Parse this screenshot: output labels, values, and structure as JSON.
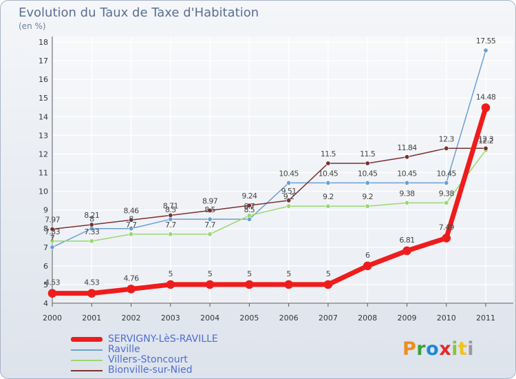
{
  "header": {
    "title": "Evolution du Taux de Taxe d'Habitation",
    "subtitle": "(en %)"
  },
  "logo": {
    "text": "Proxiti",
    "colors": [
      "#f08c1e",
      "#3aa335",
      "#1e88d8",
      "#e52a2a",
      "#8bc43f",
      "#f2c21a",
      "#9a9a9a"
    ]
  },
  "chart_data": {
    "type": "line",
    "title": "Evolution du Taux de Taxe d'Habitation",
    "subtitle": "(en %)",
    "xlabel": "",
    "ylabel": "",
    "x": [
      "2000",
      "2001",
      "2002",
      "2003",
      "2004",
      "2005",
      "2006",
      "2007",
      "2008",
      "2009",
      "2010",
      "2011"
    ],
    "yticks": [
      4,
      5,
      6,
      7,
      8,
      9,
      10,
      11,
      12,
      13,
      14,
      15,
      16,
      17,
      18
    ],
    "ylim": [
      4,
      18
    ],
    "grid": true,
    "legend_position": "bottom-left",
    "series": [
      {
        "name": "SERVIGNY-LèS-RAVILLE",
        "color": "#ee1c1c",
        "values": [
          4.53,
          4.53,
          4.76,
          5,
          5,
          5,
          5,
          5,
          6,
          6.81,
          7.49,
          14.48
        ],
        "labels": [
          "4.53",
          "4.53",
          "4.76",
          "5",
          "5",
          "5",
          "5",
          "5",
          "6",
          "6.81",
          "7.49",
          "14.48"
        ]
      },
      {
        "name": "Raville",
        "color": "#6aa0d0",
        "values": [
          7,
          8,
          8,
          8.5,
          8.5,
          8.5,
          10.45,
          10.45,
          10.45,
          10.45,
          10.45,
          17.55
        ],
        "labels": [
          "7",
          "8",
          "8",
          "8.5",
          "8.5",
          "8.5",
          "10.45",
          "10.45",
          "10.45",
          "10.45",
          "10.45",
          "17.55"
        ]
      },
      {
        "name": "Villers-Stoncourt",
        "color": "#98d870",
        "values": [
          7.33,
          7.33,
          7.7,
          7.7,
          7.7,
          8.7,
          9.2,
          9.2,
          9.2,
          9.38,
          9.38,
          12.2
        ],
        "labels": [
          "7.33",
          "7.33",
          "7.7",
          "7.7",
          "7.7",
          "8.7",
          "9.2",
          "9.2",
          "9.2",
          "9.38",
          "9.38",
          "12.2"
        ]
      },
      {
        "name": "Bionville-sur-Nied",
        "color": "#7a3030",
        "values": [
          7.97,
          8.21,
          8.46,
          8.71,
          8.97,
          9.24,
          9.51,
          11.5,
          11.5,
          11.84,
          12.3,
          12.3
        ],
        "labels": [
          "7.97",
          "8.21",
          "8.46",
          "8.71",
          "8.97",
          "9.24",
          "9.51",
          "11.5",
          "11.5",
          "11.84",
          "12.3",
          "12.3"
        ]
      }
    ]
  }
}
